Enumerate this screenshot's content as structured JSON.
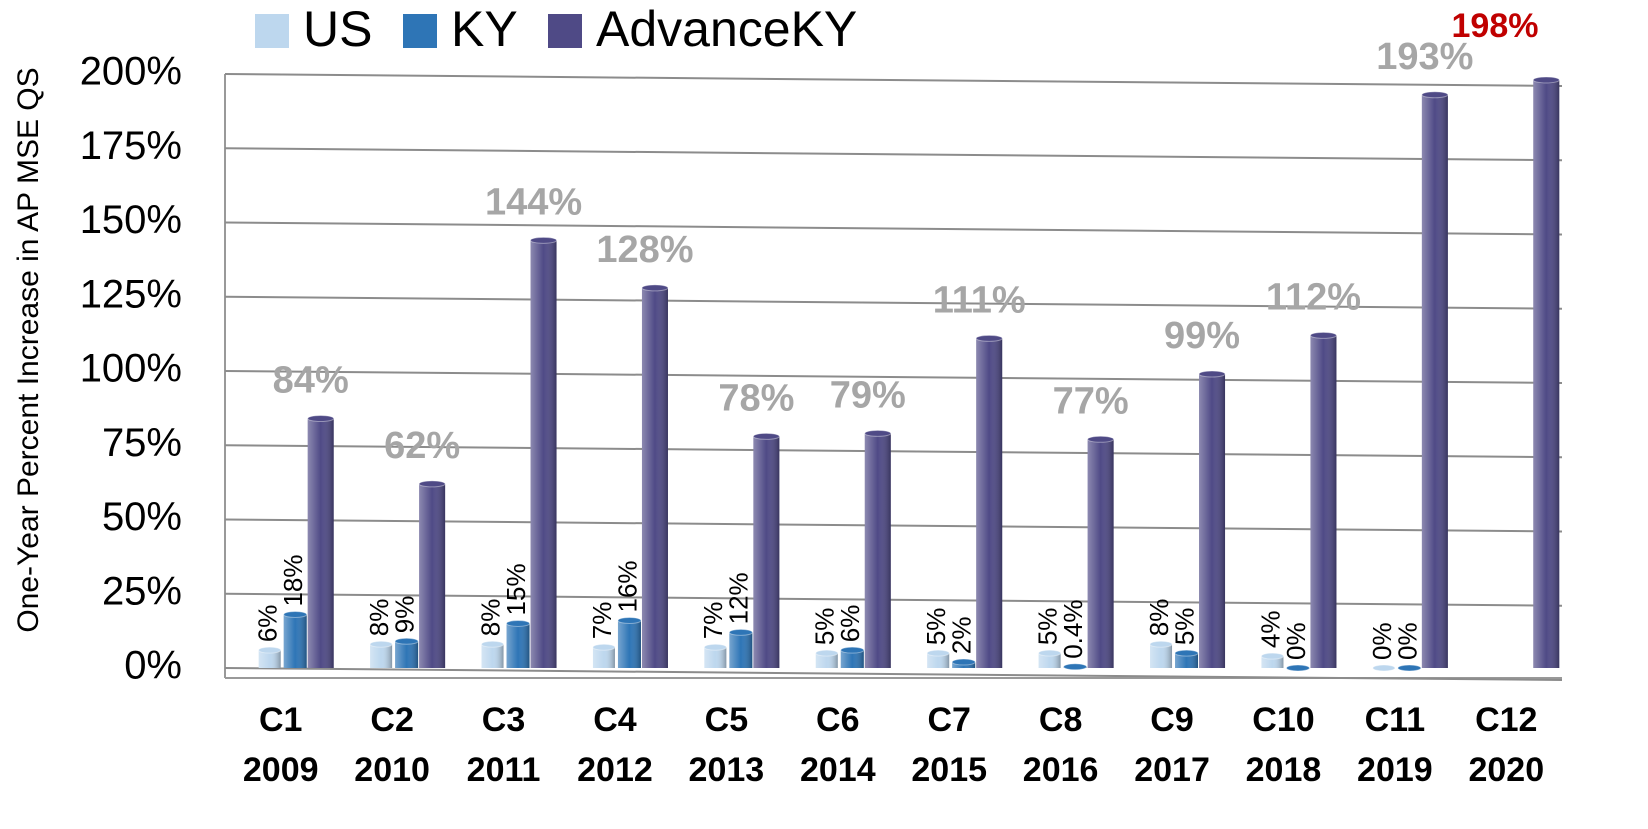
{
  "chart_data": {
    "type": "bar",
    "y_label": "One-Year Percent Increase in AP MSE QS",
    "categories": [
      [
        "C1",
        "2009"
      ],
      [
        "C2",
        "2010"
      ],
      [
        "C3",
        "2011"
      ],
      [
        "C4",
        "2012"
      ],
      [
        "C5",
        "2013"
      ],
      [
        "C6",
        "2014"
      ],
      [
        "C7",
        "2015"
      ],
      [
        "C8",
        "2016"
      ],
      [
        "C9",
        "2017"
      ],
      [
        "C10",
        "2018"
      ],
      [
        "C11",
        "2019"
      ],
      [
        "C12",
        "2020"
      ]
    ],
    "series": [
      {
        "name": "US",
        "color": "#bdd7ee",
        "values": [
          6,
          8,
          8,
          7,
          7,
          5,
          5,
          5,
          8,
          4,
          0,
          null
        ],
        "value_labels": [
          "6%",
          "8%",
          "8%",
          "7%",
          "7%",
          "5%",
          "5%",
          "5%",
          "8%",
          "4%",
          "0%",
          null
        ]
      },
      {
        "name": "KY",
        "color": "#2e75b6",
        "values": [
          18,
          9,
          15,
          16,
          12,
          6,
          2,
          0.4,
          5,
          0,
          0,
          null
        ],
        "value_labels": [
          "18%",
          "9%",
          "15%",
          "16%",
          "12%",
          "6%",
          "2%",
          "0.4%",
          "5%",
          "0%",
          "0%",
          null
        ]
      },
      {
        "name": "AdvanceKY",
        "color": "#4f4a86",
        "values": [
          84,
          62,
          144,
          128,
          78,
          79,
          111,
          77,
          99,
          112,
          193,
          198
        ],
        "value_labels": [
          "84%",
          "62%",
          "144%",
          "128%",
          "78%",
          "79%",
          "111%",
          "77%",
          "99%",
          "112%",
          "193%",
          "198%"
        ],
        "label_color": "#a6a6a6",
        "highlight": {
          "index": 11,
          "color": "#c00000"
        }
      }
    ],
    "ylim": [
      0,
      200
    ],
    "yticks": [
      {
        "value": 0,
        "label": "0%"
      },
      {
        "value": 25,
        "label": "25%"
      },
      {
        "value": 50,
        "label": "50%"
      },
      {
        "value": 75,
        "label": "75%"
      },
      {
        "value": 100,
        "label": "100%"
      },
      {
        "value": 125,
        "label": "125%"
      },
      {
        "value": 150,
        "label": "150%"
      },
      {
        "value": 175,
        "label": "175%"
      },
      {
        "value": 200,
        "label": "200%"
      }
    ],
    "grid": true,
    "legend": "top-left"
  }
}
